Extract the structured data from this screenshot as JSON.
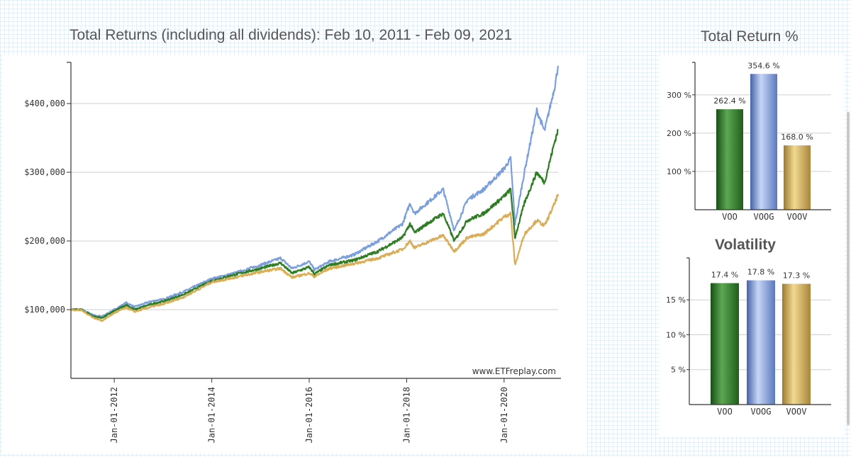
{
  "titles": {
    "main": "Total Returns (including all dividends): Feb 10, 2011 - Feb 09, 2021",
    "total_return": "Total Return %",
    "volatility": "Volatility"
  },
  "watermark": "www.ETFreplay.com",
  "colors": {
    "VOO": "#2e7d23",
    "VOOG": "#7b9fdd",
    "VOOV": "#d9ac55"
  },
  "chart_data": [
    {
      "type": "line",
      "title": "Total Returns (including all dividends): Feb 10, 2011 - Feb 09, 2021",
      "x_range": [
        "2011-02-10",
        "2021-02-09"
      ],
      "ylim": [
        0,
        460000
      ],
      "y_ticks": [
        100000,
        200000,
        300000,
        400000
      ],
      "y_tick_labels": [
        "$100,000",
        "$200,000",
        "$300,000",
        "$400,000"
      ],
      "x_ticks": [
        "2012-01-01",
        "2014-01-01",
        "2016-01-01",
        "2018-01-01",
        "2020-01-01"
      ],
      "x_tick_labels": [
        "Jan-01-2012",
        "Jan-01-2014",
        "Jan-01-2016",
        "Jan-01-2018",
        "Jan-01-2020"
      ],
      "grid": true,
      "series": [
        {
          "key": "VOOG",
          "points": [
            [
              "2011-02-10",
              100000
            ],
            [
              "2011-05-01",
              100000
            ],
            [
              "2011-08-01",
              92000
            ],
            [
              "2011-10-01",
              90000
            ],
            [
              "2012-01-01",
              100000
            ],
            [
              "2012-04-01",
              110000
            ],
            [
              "2012-06-01",
              104000
            ],
            [
              "2012-10-01",
              112000
            ],
            [
              "2013-01-01",
              115000
            ],
            [
              "2013-06-01",
              126000
            ],
            [
              "2014-01-01",
              145000
            ],
            [
              "2014-06-01",
              152000
            ],
            [
              "2015-01-01",
              165000
            ],
            [
              "2015-06-01",
              175000
            ],
            [
              "2015-08-25",
              160000
            ],
            [
              "2016-01-01",
              170000
            ],
            [
              "2016-02-10",
              158000
            ],
            [
              "2016-06-01",
              170000
            ],
            [
              "2016-12-01",
              180000
            ],
            [
              "2017-06-01",
              200000
            ],
            [
              "2017-12-01",
              225000
            ],
            [
              "2018-01-26",
              255000
            ],
            [
              "2018-03-01",
              240000
            ],
            [
              "2018-06-01",
              255000
            ],
            [
              "2018-10-01",
              275000
            ],
            [
              "2018-12-24",
              215000
            ],
            [
              "2019-04-01",
              260000
            ],
            [
              "2019-08-01",
              275000
            ],
            [
              "2019-12-31",
              305000
            ],
            [
              "2020-02-19",
              320000
            ],
            [
              "2020-03-23",
              225000
            ],
            [
              "2020-06-01",
              300000
            ],
            [
              "2020-09-02",
              390000
            ],
            [
              "2020-10-30",
              360000
            ],
            [
              "2021-01-15",
              425000
            ],
            [
              "2021-02-09",
              455000
            ]
          ]
        },
        {
          "key": "VOO",
          "points": [
            [
              "2011-02-10",
              100000
            ],
            [
              "2011-05-01",
              100000
            ],
            [
              "2011-08-01",
              90000
            ],
            [
              "2011-10-01",
              88000
            ],
            [
              "2012-01-01",
              98000
            ],
            [
              "2012-04-01",
              107000
            ],
            [
              "2012-06-01",
              100000
            ],
            [
              "2012-10-01",
              108000
            ],
            [
              "2013-01-01",
              112000
            ],
            [
              "2013-06-01",
              122000
            ],
            [
              "2014-01-01",
              142000
            ],
            [
              "2014-06-01",
              150000
            ],
            [
              "2015-01-01",
              160000
            ],
            [
              "2015-06-01",
              168000
            ],
            [
              "2015-08-25",
              153000
            ],
            [
              "2016-01-01",
              162000
            ],
            [
              "2016-02-10",
              152000
            ],
            [
              "2016-06-01",
              165000
            ],
            [
              "2016-12-01",
              172000
            ],
            [
              "2017-06-01",
              185000
            ],
            [
              "2017-12-01",
              205000
            ],
            [
              "2018-01-26",
              225000
            ],
            [
              "2018-03-01",
              212000
            ],
            [
              "2018-06-01",
              225000
            ],
            [
              "2018-10-01",
              240000
            ],
            [
              "2018-12-24",
              200000
            ],
            [
              "2019-04-01",
              230000
            ],
            [
              "2019-08-01",
              240000
            ],
            [
              "2019-12-31",
              265000
            ],
            [
              "2020-02-19",
              275000
            ],
            [
              "2020-03-23",
              205000
            ],
            [
              "2020-06-01",
              255000
            ],
            [
              "2020-09-02",
              300000
            ],
            [
              "2020-10-30",
              285000
            ],
            [
              "2021-01-15",
              345000
            ],
            [
              "2021-02-09",
              362000
            ]
          ]
        },
        {
          "key": "VOOV",
          "points": [
            [
              "2011-02-10",
              100000
            ],
            [
              "2011-05-01",
              99000
            ],
            [
              "2011-08-01",
              88000
            ],
            [
              "2011-10-01",
              84000
            ],
            [
              "2012-01-01",
              95000
            ],
            [
              "2012-04-01",
              103000
            ],
            [
              "2012-06-01",
              97000
            ],
            [
              "2012-10-01",
              104000
            ],
            [
              "2013-01-01",
              108000
            ],
            [
              "2013-06-01",
              118000
            ],
            [
              "2014-01-01",
              140000
            ],
            [
              "2014-06-01",
              146000
            ],
            [
              "2015-01-01",
              155000
            ],
            [
              "2015-06-01",
              160000
            ],
            [
              "2015-08-25",
              147000
            ],
            [
              "2016-01-01",
              153000
            ],
            [
              "2016-02-10",
              148000
            ],
            [
              "2016-06-01",
              160000
            ],
            [
              "2016-12-01",
              167000
            ],
            [
              "2017-06-01",
              175000
            ],
            [
              "2017-12-01",
              188000
            ],
            [
              "2018-01-26",
              200000
            ],
            [
              "2018-03-01",
              190000
            ],
            [
              "2018-06-01",
              198000
            ],
            [
              "2018-10-01",
              208000
            ],
            [
              "2018-12-24",
              185000
            ],
            [
              "2019-04-01",
              205000
            ],
            [
              "2019-08-01",
              210000
            ],
            [
              "2019-12-31",
              235000
            ],
            [
              "2020-02-19",
              240000
            ],
            [
              "2020-03-23",
              165000
            ],
            [
              "2020-06-01",
              210000
            ],
            [
              "2020-09-02",
              230000
            ],
            [
              "2020-10-30",
              222000
            ],
            [
              "2021-01-15",
              255000
            ],
            [
              "2021-02-09",
              268000
            ]
          ]
        }
      ]
    },
    {
      "type": "bar",
      "title": "Total Return %",
      "categories": [
        "VOO",
        "VOOG",
        "VOOV"
      ],
      "values": [
        262.4,
        354.6,
        168.0
      ],
      "value_labels": [
        "262.4 %",
        "354.6 %",
        "168.0 %"
      ],
      "ylim": [
        0,
        370
      ],
      "y_ticks": [
        100,
        200,
        300
      ],
      "y_tick_labels": [
        "100 %",
        "200 %",
        "300 %"
      ]
    },
    {
      "type": "bar",
      "title": "Volatility",
      "categories": [
        "VOO",
        "VOOG",
        "VOOV"
      ],
      "values": [
        17.4,
        17.8,
        17.3
      ],
      "value_labels": [
        "17.4 %",
        "17.8 %",
        "17.3 %"
      ],
      "ylim": [
        0,
        20.2
      ],
      "y_ticks": [
        5,
        10,
        15
      ],
      "y_tick_labels": [
        "5 %",
        "10 %",
        "15 %"
      ]
    }
  ]
}
